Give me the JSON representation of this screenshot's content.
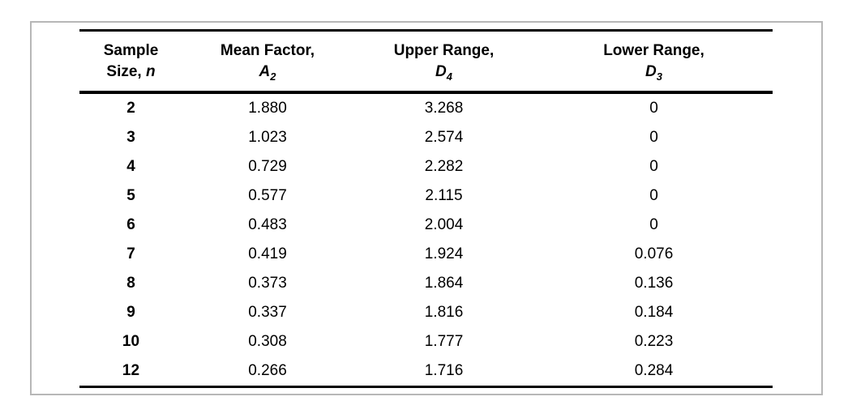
{
  "chart_data": {
    "type": "table",
    "columns": [
      {
        "full_label": "Sample Size, n",
        "line1": "Sample",
        "line2": "Size, ",
        "symbol": "n",
        "subscript": ""
      },
      {
        "full_label": "Mean Factor, A2",
        "line1": "Mean Factor,",
        "line2": "",
        "symbol": "A",
        "subscript": "2"
      },
      {
        "full_label": "Upper Range, D4",
        "line1": "Upper Range,",
        "line2": "",
        "symbol": "D",
        "subscript": "4"
      },
      {
        "full_label": "Lower Range, D3",
        "line1": "Lower Range,",
        "line2": "",
        "symbol": "D",
        "subscript": "3"
      }
    ],
    "rows": [
      [
        "2",
        "1.880",
        "3.268",
        "0"
      ],
      [
        "3",
        "1.023",
        "2.574",
        "0"
      ],
      [
        "4",
        "0.729",
        "2.282",
        "0"
      ],
      [
        "5",
        "0.577",
        "2.115",
        "0"
      ],
      [
        "6",
        "0.483",
        "2.004",
        "0"
      ],
      [
        "7",
        "0.419",
        "1.924",
        "0.076"
      ],
      [
        "8",
        "0.373",
        "1.864",
        "0.136"
      ],
      [
        "9",
        "0.337",
        "1.816",
        "0.184"
      ],
      [
        "10",
        "0.308",
        "1.777",
        "0.223"
      ],
      [
        "12",
        "0.266",
        "1.716",
        "0.284"
      ]
    ]
  },
  "colors": {
    "background": "#ffffff",
    "frame_border": "#b7b7b7",
    "table_rule": "#000000",
    "text": "#000000"
  }
}
